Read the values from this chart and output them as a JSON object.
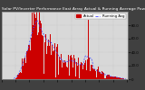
{
  "title": "Solar PV/Inverter Performance East Array Actual & Running Average Power Output",
  "bg_color": "#404040",
  "plot_bg_color": "#d8d8d8",
  "bar_color": "#cc0000",
  "avg_color": "#4444ff",
  "ylim": [
    0,
    4000
  ],
  "ytick_labels": [
    "80.0",
    "60.0",
    "40.0",
    "20.0",
    "0"
  ],
  "ytick_vals": [
    3200,
    2400,
    1600,
    800,
    0
  ],
  "num_points": 288,
  "title_fontsize": 3.2,
  "tick_fontsize": 2.8,
  "legend_fontsize": 2.8,
  "grid_color": "#aaaaaa",
  "spine_color": "#888888"
}
